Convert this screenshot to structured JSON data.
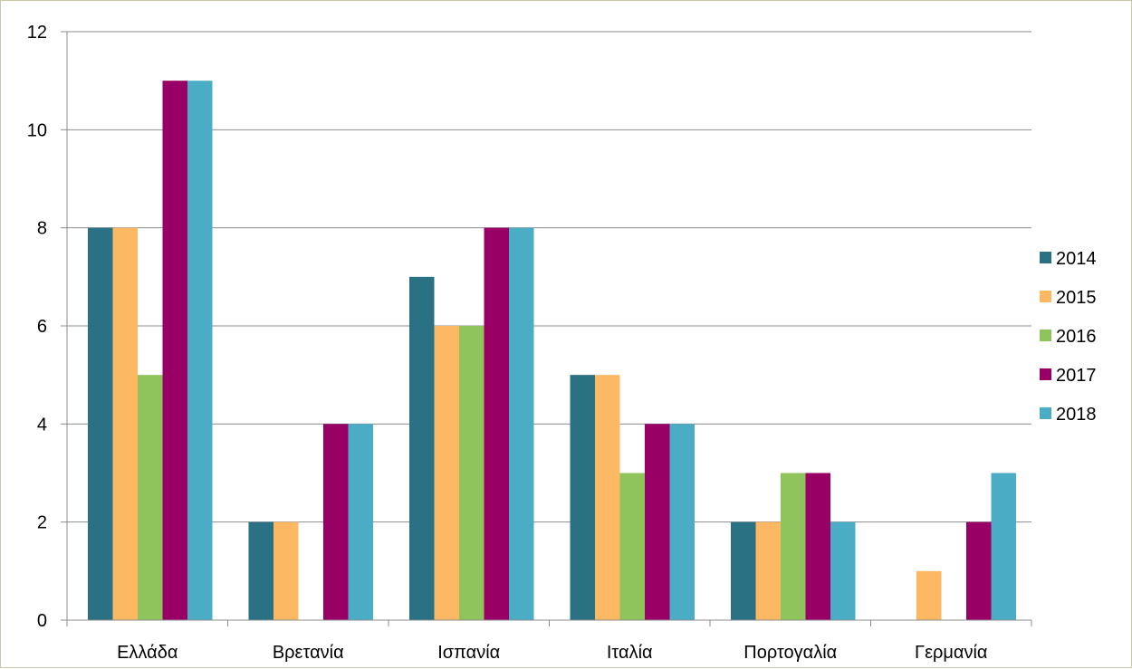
{
  "chart_data": {
    "type": "bar",
    "title": "",
    "xlabel": "",
    "ylabel": "",
    "ylim": [
      0,
      12
    ],
    "yticks": [
      0,
      2,
      4,
      6,
      8,
      10,
      12
    ],
    "grid": true,
    "legend_position": "right",
    "categories": [
      "Ελλάδα",
      "Βρετανία",
      "Ισπανία",
      "Ιταλία",
      "Πορτογαλία",
      "Γερμανία"
    ],
    "series": [
      {
        "name": "2014",
        "color": "#2a7184",
        "values": [
          8,
          2,
          7,
          5,
          2,
          0
        ]
      },
      {
        "name": "2015",
        "color": "#fdb863",
        "values": [
          8,
          2,
          6,
          5,
          2,
          1
        ]
      },
      {
        "name": "2016",
        "color": "#8fc45d",
        "values": [
          5,
          0,
          6,
          3,
          3,
          0
        ]
      },
      {
        "name": "2017",
        "color": "#990066",
        "values": [
          11,
          4,
          8,
          4,
          3,
          2
        ]
      },
      {
        "name": "2018",
        "color": "#4bacc6",
        "values": [
          11,
          4,
          8,
          4,
          2,
          3
        ]
      }
    ]
  }
}
